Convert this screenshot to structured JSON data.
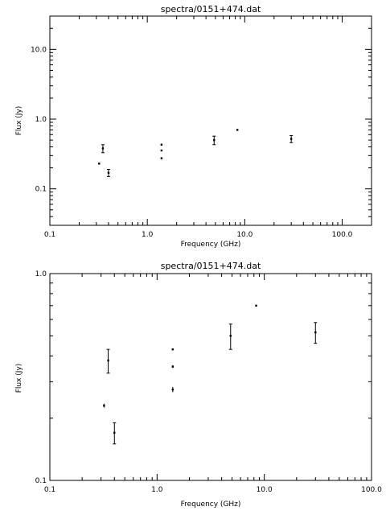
{
  "chart_data": [
    {
      "type": "scatter",
      "title": "spectra/0151+474.dat",
      "xlabel": "Frequency (GHz)",
      "ylabel": "Flux (Jy)",
      "x_scale": "log",
      "y_scale": "log",
      "xlim": [
        0.1,
        200
      ],
      "ylim": [
        0.03,
        30
      ],
      "x_ticks": [
        {
          "v": 0.1,
          "label": "0.1"
        },
        {
          "v": 1,
          "label": "1.0"
        },
        {
          "v": 10,
          "label": "10.0"
        },
        {
          "v": 100,
          "label": "100.0"
        }
      ],
      "y_ticks": [
        {
          "v": 0.1,
          "label": "0.1"
        },
        {
          "v": 1,
          "label": "1.0"
        },
        {
          "v": 10,
          "label": "10.0"
        }
      ],
      "grid": false,
      "points": [
        {
          "x": 0.32,
          "y": 0.23,
          "err": 0.005
        },
        {
          "x": 0.35,
          "y": 0.38,
          "err": 0.05
        },
        {
          "x": 0.4,
          "y": 0.17,
          "err": 0.02
        },
        {
          "x": 1.4,
          "y": 0.43,
          "err": 0.005
        },
        {
          "x": 1.4,
          "y": 0.355,
          "err": 0.005
        },
        {
          "x": 1.4,
          "y": 0.275,
          "err": 0.008
        },
        {
          "x": 4.85,
          "y": 0.5,
          "err": 0.07
        },
        {
          "x": 8.4,
          "y": 0.7,
          "err": 0.005
        },
        {
          "x": 30.0,
          "y": 0.52,
          "err": 0.06
        }
      ]
    },
    {
      "type": "scatter",
      "title": "spectra/0151+474.dat",
      "xlabel": "Frequency (GHz)",
      "ylabel": "Flux (Jy)",
      "x_scale": "log",
      "y_scale": "log",
      "xlim": [
        0.1,
        100
      ],
      "ylim": [
        0.1,
        1.0
      ],
      "x_ticks": [
        {
          "v": 0.1,
          "label": "0.1"
        },
        {
          "v": 1,
          "label": "1.0"
        },
        {
          "v": 10,
          "label": "10.0"
        },
        {
          "v": 100,
          "label": "100.0"
        }
      ],
      "y_ticks": [
        {
          "v": 0.1,
          "label": "0.1"
        },
        {
          "v": 1,
          "label": "1.0"
        }
      ],
      "grid": false,
      "points": [
        {
          "x": 0.32,
          "y": 0.23,
          "err": 0.005
        },
        {
          "x": 0.35,
          "y": 0.38,
          "err": 0.05
        },
        {
          "x": 0.4,
          "y": 0.17,
          "err": 0.02
        },
        {
          "x": 1.4,
          "y": 0.43,
          "err": 0.005
        },
        {
          "x": 1.4,
          "y": 0.355,
          "err": 0.005
        },
        {
          "x": 1.4,
          "y": 0.275,
          "err": 0.008
        },
        {
          "x": 4.85,
          "y": 0.5,
          "err": 0.07
        },
        {
          "x": 8.4,
          "y": 0.7,
          "err": 0.005
        },
        {
          "x": 30.0,
          "y": 0.52,
          "err": 0.06
        }
      ]
    }
  ]
}
